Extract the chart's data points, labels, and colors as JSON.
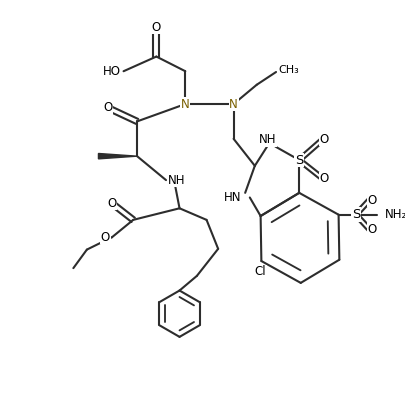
{
  "bg_color": "#ffffff",
  "line_color": "#2d2d2d",
  "bond_lw": 1.5,
  "fs": 8.5,
  "figsize": [
    4.06,
    4.05
  ],
  "dpi": 100,
  "xlim": [
    0,
    10
  ],
  "ylim": [
    0,
    10
  ]
}
